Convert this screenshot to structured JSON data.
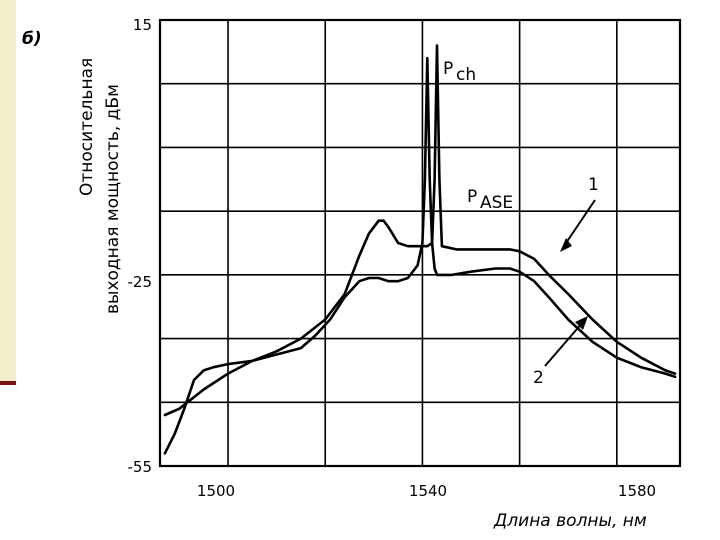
{
  "chart_data": {
    "type": "line",
    "panel_label": "б)",
    "xlabel": "Длина волны, нм",
    "ylabel_line1": "Относительная",
    "ylabel_line2": "выходная мощность, дБм",
    "x_ticks": [
      "1500",
      "1540",
      "1580"
    ],
    "y_ticks": [
      "15",
      "-25",
      "-55"
    ],
    "xlim": [
      1486,
      1593
    ],
    "ylim": [
      -55,
      15
    ],
    "grid": true,
    "annotations": {
      "pch_main": "P",
      "pch_sub": "ch",
      "pase_main": "P",
      "pase_sub": "ASE",
      "curve1": "1",
      "curve2": "2"
    },
    "series": [
      {
        "id": "curve-1",
        "x": [
          1487,
          1490,
          1495,
          1500,
          1505,
          1510,
          1515,
          1520,
          1524,
          1527,
          1529,
          1531,
          1532,
          1533,
          1535,
          1537,
          1539,
          1540,
          1541,
          1542,
          1542.5,
          1543,
          1543.5,
          1544,
          1547,
          1550,
          1555,
          1558,
          1560,
          1563,
          1566,
          1570,
          1575,
          1580,
          1585,
          1590,
          1592
        ],
        "y": [
          -47,
          -46,
          -43,
          -40.5,
          -38.5,
          -37,
          -35,
          -32,
          -28,
          -22,
          -18.5,
          -16.5,
          -16.5,
          -17.5,
          -20,
          -20.5,
          -20.5,
          -20.5,
          -20.5,
          -20,
          -10,
          11,
          -10,
          -20.5,
          -21,
          -21,
          -21,
          -21,
          -21.3,
          -22.5,
          -25,
          -28,
          -32,
          -35.5,
          -38,
          -40,
          -40.5
        ]
      },
      {
        "id": "curve-2",
        "x": [
          1487,
          1489,
          1491,
          1493,
          1495,
          1497,
          1500,
          1505,
          1510,
          1515,
          1518,
          1521,
          1524,
          1527,
          1529,
          1531,
          1533,
          1535,
          1537,
          1539,
          1540,
          1540.5,
          1541,
          1541.5,
          1542,
          1542.5,
          1543,
          1546,
          1550,
          1555,
          1558,
          1560,
          1563,
          1566,
          1570,
          1575,
          1580,
          1585,
          1590,
          1592
        ],
        "y": [
          -53,
          -50,
          -46,
          -41.5,
          -40,
          -39.5,
          -39,
          -38.5,
          -37.5,
          -36.5,
          -34.5,
          -32,
          -28.5,
          -26,
          -25.5,
          -25.5,
          -26,
          -26,
          -25.5,
          -23.5,
          -20,
          -10,
          9,
          -10,
          -20,
          -24,
          -25,
          -25,
          -24.5,
          -24,
          -24,
          -24.5,
          -26,
          -28.5,
          -32,
          -35.5,
          -38,
          -39.5,
          -40.5,
          -41
        ]
      }
    ]
  }
}
